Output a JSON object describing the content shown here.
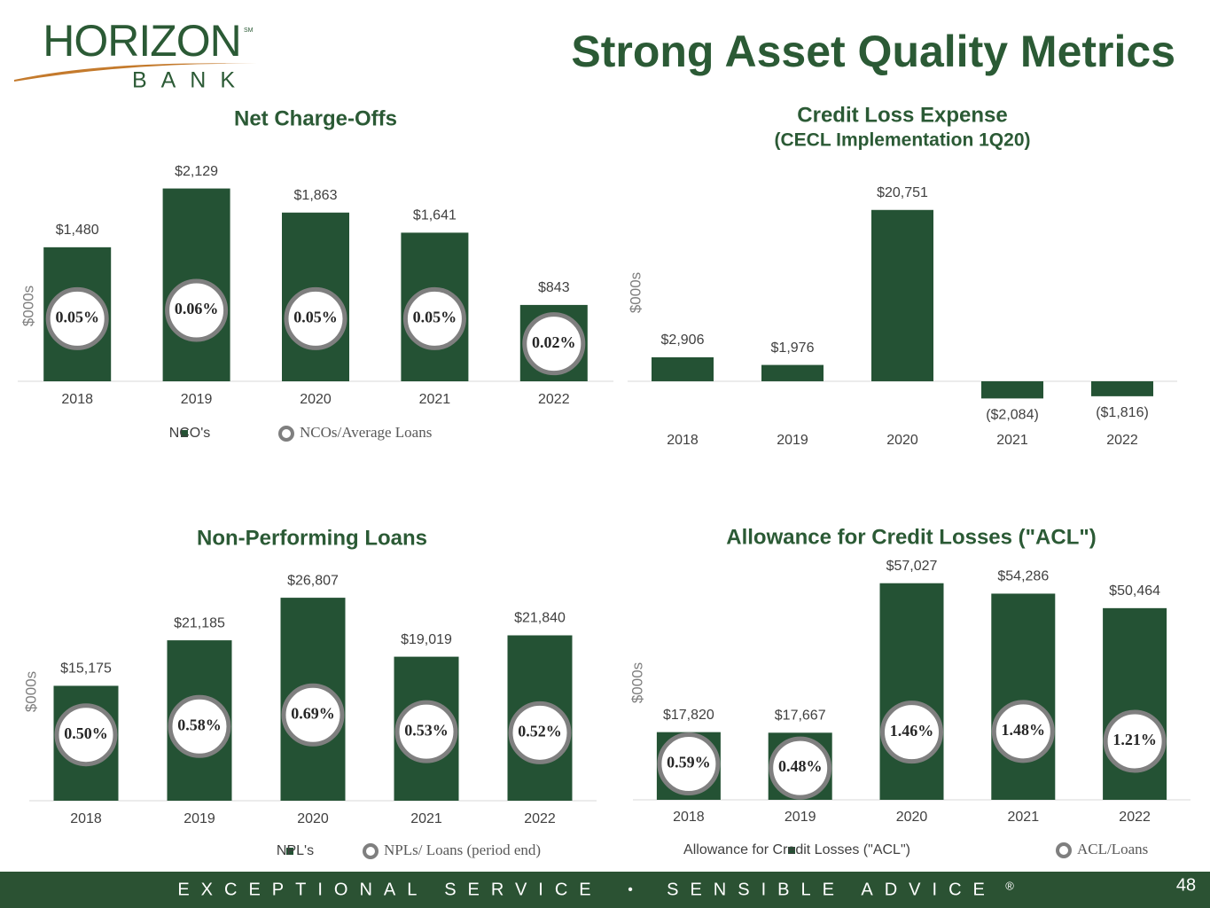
{
  "header": {
    "logo": "HORIZON",
    "logo_sub": "BANK",
    "logo_mark": "SM",
    "title": "Strong Asset Quality Metrics"
  },
  "footer": {
    "left": "EXCEPTIONAL SERVICE",
    "separator": "•",
    "right": "SENSIBLE ADVICE",
    "mark": "®",
    "page": 48
  },
  "chart_data": [
    {
      "type": "bar",
      "title": "Net Charge-Offs",
      "y_label": "$000s",
      "categories": [
        "2018",
        "2019",
        "2020",
        "2021",
        "2022"
      ],
      "ylim": [
        0,
        2350
      ],
      "y2lim": [
        -0.025,
        0.23
      ],
      "series": [
        {
          "name": "NCO's",
          "color": "#245234",
          "values": [
            1480,
            2129,
            1863,
            1641,
            843
          ],
          "value_labels": [
            "$1,480",
            "$2,129",
            "$1,863",
            "$1,641",
            "$843"
          ]
        },
        {
          "name": "NCOs/Average Loans",
          "color": "#7f7f7f",
          "axis": "y2",
          "values": [
            0.05,
            0.06,
            0.05,
            0.05,
            0.02
          ],
          "value_labels": [
            "0.05%",
            "0.06%",
            "0.05%",
            "0.05%",
            "0.02%"
          ]
        }
      ]
    },
    {
      "type": "bar",
      "title": "Credit Loss Expense",
      "subtitle": "(CECL Implementation 1Q20)",
      "y_label": "$000s",
      "categories": [
        "2018",
        "2019",
        "2020",
        "2021",
        "2022"
      ],
      "ylim": [
        -4300,
        24700
      ],
      "series": [
        {
          "color": "#245234",
          "values": [
            2906,
            1976,
            20751,
            -2084,
            -1816
          ],
          "value_labels": [
            "$2,906",
            "$1,976",
            "$20,751",
            "($2,084)",
            "($1,816)"
          ]
        }
      ]
    },
    {
      "type": "bar",
      "title": "Non-Performing Loans",
      "y_label": "$000s",
      "categories": [
        "2018",
        "2019",
        "2020",
        "2021",
        "2022"
      ],
      "ylim": [
        0,
        30800
      ],
      "y2lim": [
        -0.13,
        2.1
      ],
      "series": [
        {
          "name": "NPL's",
          "color": "#245234",
          "values": [
            15175,
            21185,
            26807,
            19019,
            21840
          ],
          "value_labels": [
            "$15,175",
            "$21,185",
            "$26,807",
            "$19,019",
            "$21,840"
          ]
        },
        {
          "name": "NPLs/ Loans (period end)",
          "color": "#7f7f7f",
          "axis": "y2",
          "values": [
            0.5,
            0.58,
            0.69,
            0.53,
            0.52
          ],
          "value_labels": [
            "0.50%",
            "0.58%",
            "0.69%",
            "0.53%",
            "0.52%"
          ]
        }
      ]
    },
    {
      "type": "bar",
      "title": "Allowance for Credit Losses (\"ACL\")",
      "y_label": "$000s",
      "categories": [
        "2018",
        "2019",
        "2020",
        "2021",
        "2022"
      ],
      "ylim": [
        0,
        63500
      ],
      "y2lim": [
        -0.39,
        6.2
      ],
      "series": [
        {
          "name": "Allowance for Credit Losses (\"ACL\")",
          "color": "#245234",
          "values": [
            17820,
            17667,
            57027,
            54286,
            50464
          ],
          "value_labels": [
            "$17,820",
            "$17,667",
            "$57,027",
            "$54,286",
            "$50,464"
          ]
        },
        {
          "name": "ACL/Loans",
          "color": "#7f7f7f",
          "axis": "y2",
          "values": [
            0.59,
            0.48,
            1.46,
            1.48,
            1.21
          ],
          "value_labels": [
            "0.59%",
            "0.48%",
            "1.46%",
            "1.48%",
            "1.21%"
          ]
        }
      ]
    }
  ]
}
